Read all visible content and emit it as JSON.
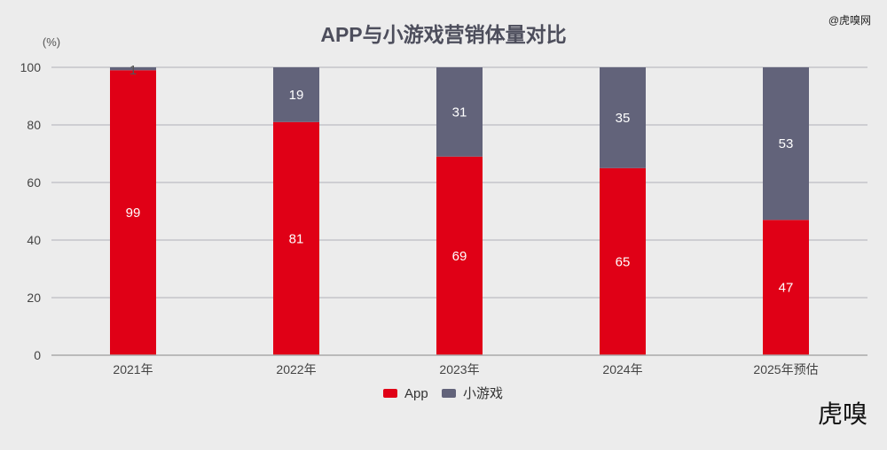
{
  "chart_data": {
    "type": "bar",
    "stacked": true,
    "title": "APP与小游戏营销体量对比",
    "ylabel": "(%)",
    "xlabel": "",
    "ylim": [
      0,
      100
    ],
    "yticks": [
      0,
      20,
      40,
      60,
      80,
      100
    ],
    "grid": true,
    "legend_position": "bottom",
    "categories": [
      "2021年",
      "2022年",
      "2023年",
      "2024年",
      "2025年预估"
    ],
    "series": [
      {
        "name": "App",
        "color": "#e00016",
        "values": [
          99,
          81,
          69,
          65,
          47
        ]
      },
      {
        "name": "小游戏",
        "color": "#62637a",
        "values": [
          1,
          19,
          31,
          35,
          53
        ]
      }
    ]
  },
  "watermarks": {
    "top": "@虎嗅网",
    "bottom": "虎嗅"
  }
}
